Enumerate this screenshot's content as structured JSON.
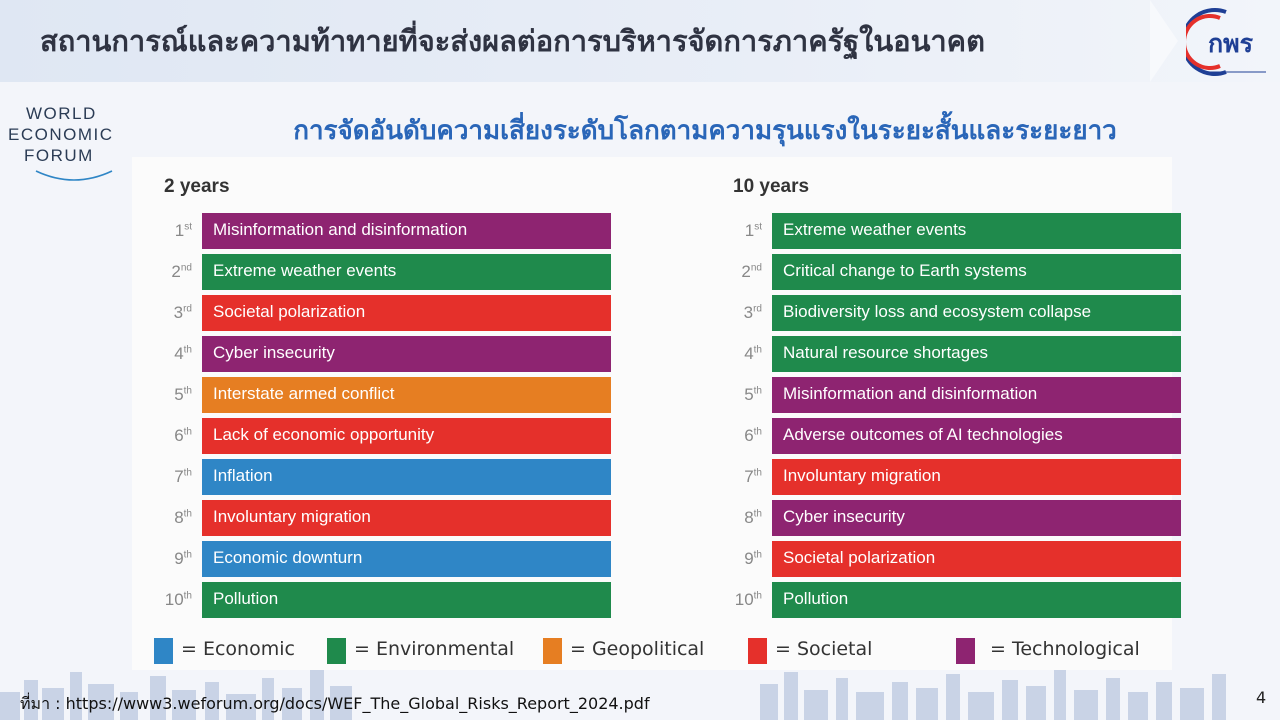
{
  "header": {
    "title": "สถานการณ์และความท้าทายที่จะส่งผลต่อการบริหารจัดการภาครัฐในอนาคต",
    "logo_text": "กพร"
  },
  "wef_logo": {
    "lines": [
      "WORLD",
      "ECONOMIC",
      "FORUM"
    ]
  },
  "subtitle": "การจัดอันดับความเสี่ยงระดับโลกตามความรุนแรงในระยะสั้นและระยะยาว",
  "colors": {
    "Economic": "#2f86c6",
    "Environmental": "#1f8a4c",
    "Geopolitical": "#e67e22",
    "Societal": "#e5302b",
    "Technological": "#8e2471"
  },
  "rankings": [
    {
      "title": "2 years",
      "items": [
        {
          "num": "1",
          "suffix": "st",
          "label": "Misinformation and disinformation",
          "category": "Technological"
        },
        {
          "num": "2",
          "suffix": "nd",
          "label": "Extreme weather events",
          "category": "Environmental"
        },
        {
          "num": "3",
          "suffix": "rd",
          "label": "Societal polarization",
          "category": "Societal"
        },
        {
          "num": "4",
          "suffix": "th",
          "label": "Cyber insecurity",
          "category": "Technological"
        },
        {
          "num": "5",
          "suffix": "th",
          "label": "Interstate armed conflict",
          "category": "Geopolitical"
        },
        {
          "num": "6",
          "suffix": "th",
          "label": "Lack of economic opportunity",
          "category": "Societal"
        },
        {
          "num": "7",
          "suffix": "th",
          "label": "Inflation",
          "category": "Economic"
        },
        {
          "num": "8",
          "suffix": "th",
          "label": "Involuntary migration",
          "category": "Societal"
        },
        {
          "num": "9",
          "suffix": "th",
          "label": "Economic downturn",
          "category": "Economic"
        },
        {
          "num": "10",
          "suffix": "th",
          "label": "Pollution",
          "category": "Environmental"
        }
      ]
    },
    {
      "title": "10 years",
      "items": [
        {
          "num": "1",
          "suffix": "st",
          "label": "Extreme weather events",
          "category": "Environmental"
        },
        {
          "num": "2",
          "suffix": "nd",
          "label": "Critical change to Earth systems",
          "category": "Environmental"
        },
        {
          "num": "3",
          "suffix": "rd",
          "label": "Biodiversity loss and ecosystem collapse",
          "category": "Environmental"
        },
        {
          "num": "4",
          "suffix": "th",
          "label": "Natural resource shortages",
          "category": "Environmental"
        },
        {
          "num": "5",
          "suffix": "th",
          "label": "Misinformation and disinformation",
          "category": "Technological"
        },
        {
          "num": "6",
          "suffix": "th",
          "label": "Adverse outcomes of AI technologies",
          "category": "Technological"
        },
        {
          "num": "7",
          "suffix": "th",
          "label": "Involuntary migration",
          "category": "Societal"
        },
        {
          "num": "8",
          "suffix": "th",
          "label": "Cyber insecurity",
          "category": "Technological"
        },
        {
          "num": "9",
          "suffix": "th",
          "label": "Societal polarization",
          "category": "Societal"
        },
        {
          "num": "10",
          "suffix": "th",
          "label": "Pollution",
          "category": "Environmental"
        }
      ]
    }
  ],
  "legend": [
    {
      "label": "= Economic",
      "category": "Economic"
    },
    {
      "label": "= Environmental",
      "category": "Environmental"
    },
    {
      "label": "= Geopolitical",
      "category": "Geopolitical"
    },
    {
      "label": "= Societal",
      "category": "Societal"
    },
    {
      "label": "= Technological",
      "category": "Technological"
    }
  ],
  "footer": {
    "source": "ที่มา : https://www3.weforum.org/docs/WEF_The_Global_Risks_Report_2024.pdf",
    "page_number": "4"
  }
}
